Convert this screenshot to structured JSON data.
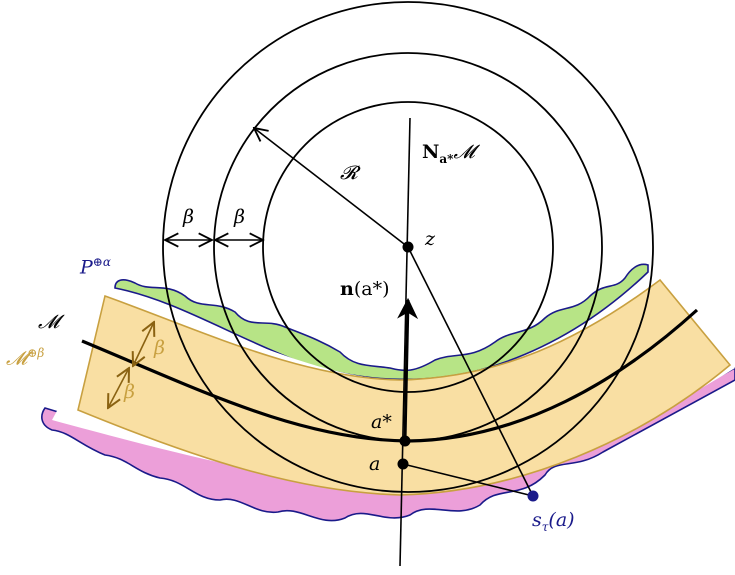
{
  "labels": {
    "normal_space": "N_{a*}M",
    "normal_space_main": "N",
    "normal_space_sub": "a*",
    "normal_space_tail": "𝓜",
    "reach": "𝓡",
    "beta": "β",
    "z": "z",
    "P_alpha_base": "P",
    "P_alpha_sup": "⊕α",
    "normal_vec_main": "n",
    "normal_vec_arg": "(a*)",
    "manifold": "𝓜",
    "manifold_offset_base": "𝓜",
    "manifold_offset_sup": "⊕β",
    "a_star": "a*",
    "a": "a",
    "s_tau_base": "s",
    "s_tau_sub": "τ",
    "s_tau_arg": "(a)"
  },
  "colors": {
    "band_fill": "#f9dfa3",
    "band_stroke": "#c8a040",
    "green_fill": "#b7e486",
    "pink_fill": "#ec9fd9",
    "navy": "#1a1a8a",
    "gold_label": "#c8a040",
    "black": "#000000"
  }
}
